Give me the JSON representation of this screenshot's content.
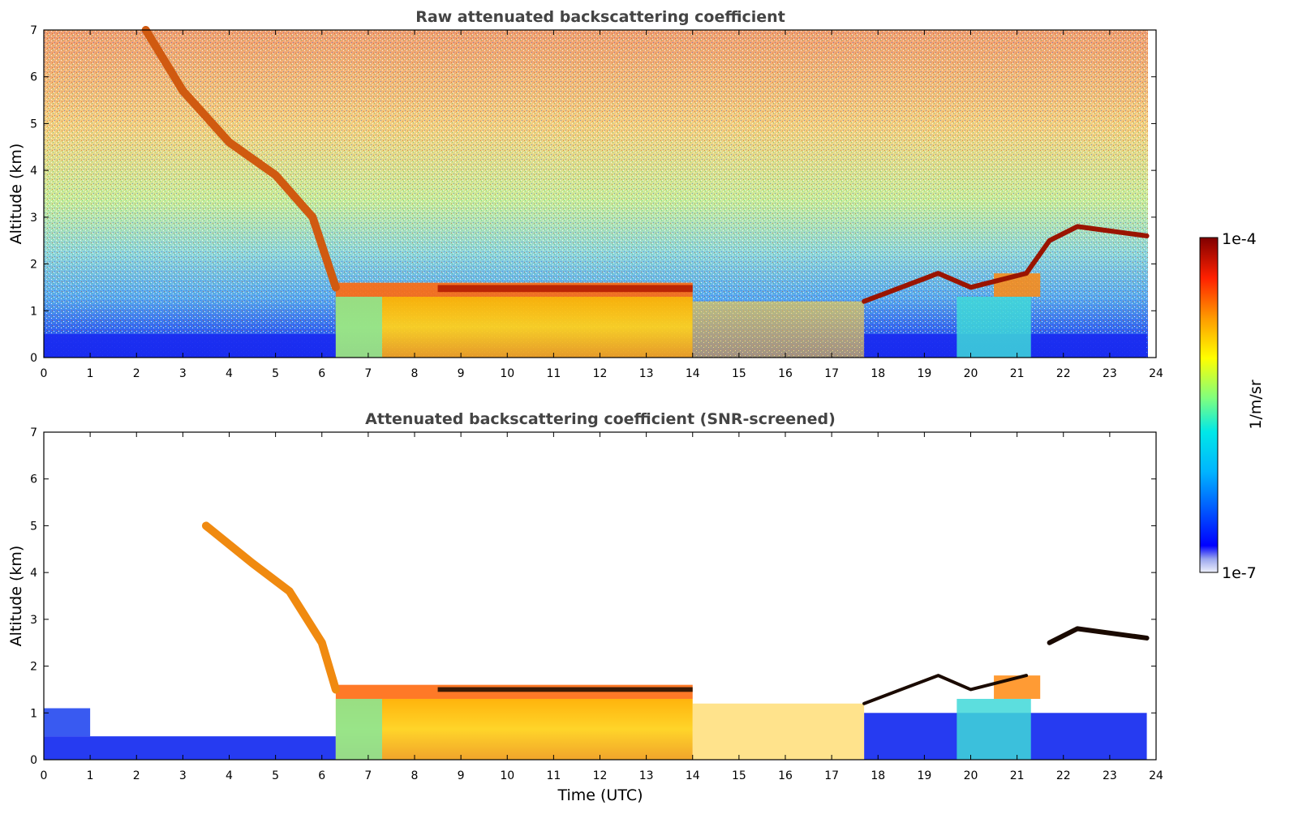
{
  "chart_data": [
    {
      "type": "heatmap",
      "title": "Raw attenuated backscattering coefficient",
      "xlabel": "",
      "ylabel": "Altitude (km)",
      "xlim": [
        0,
        24
      ],
      "ylim": [
        0,
        7
      ],
      "x_ticks": [
        "0",
        "1",
        "2",
        "3",
        "4",
        "5",
        "6",
        "7",
        "8",
        "9",
        "10",
        "11",
        "12",
        "13",
        "14",
        "15",
        "16",
        "17",
        "18",
        "19",
        "20",
        "21",
        "22",
        "23",
        "24"
      ],
      "y_ticks": [
        "0",
        "1",
        "2",
        "3",
        "4",
        "5",
        "6",
        "7"
      ],
      "features": {
        "low_altitude_blue_layer": {
          "x": [
            0,
            6.3
          ],
          "y": [
            0,
            0.5
          ]
        },
        "descending_virga": [
          [
            2.2,
            7.0
          ],
          [
            3.0,
            5.7
          ],
          [
            4.0,
            4.6
          ],
          [
            5.0,
            3.9
          ],
          [
            5.8,
            3.0
          ],
          [
            6.3,
            1.5
          ]
        ],
        "low_cloud": {
          "x": [
            6.3,
            14.0
          ],
          "base": 1.3,
          "top": 1.6
        },
        "broken_clouds": {
          "x": [
            14.0,
            17.7
          ]
        },
        "rising_cloud_layer": [
          [
            17.7,
            1.2
          ],
          [
            18.5,
            1.5
          ],
          [
            19.3,
            1.8
          ],
          [
            20.0,
            1.5
          ],
          [
            21.2,
            1.8
          ],
          [
            21.7,
            2.5
          ],
          [
            22.3,
            2.8
          ],
          [
            23.8,
            2.6
          ]
        ],
        "clear_gap": {
          "x": [
            19.7,
            21.3
          ],
          "y": [
            0,
            1.3
          ]
        }
      }
    },
    {
      "type": "heatmap",
      "title": "Attenuated backscattering coefficient (SNR-screened)",
      "xlabel": "Time (UTC)",
      "ylabel": "Altitude (km)",
      "xlim": [
        0,
        24
      ],
      "ylim": [
        0,
        7
      ],
      "x_ticks": [
        "0",
        "1",
        "2",
        "3",
        "4",
        "5",
        "6",
        "7",
        "8",
        "9",
        "10",
        "11",
        "12",
        "13",
        "14",
        "15",
        "16",
        "17",
        "18",
        "19",
        "20",
        "21",
        "22",
        "23",
        "24"
      ],
      "y_ticks": [
        "0",
        "1",
        "2",
        "3",
        "4",
        "5",
        "6",
        "7"
      ],
      "features": {
        "screened_virga": [
          [
            3.5,
            5.0
          ],
          [
            4.5,
            4.2
          ],
          [
            5.3,
            3.6
          ],
          [
            6.0,
            2.5
          ],
          [
            6.3,
            1.5
          ]
        ],
        "low_cloud": {
          "x": [
            6.3,
            14.0
          ],
          "base": 1.3,
          "top": 1.6
        },
        "elevated_layer": [
          [
            21.7,
            2.5
          ],
          [
            22.3,
            2.8
          ],
          [
            23.8,
            2.6
          ]
        ]
      }
    }
  ],
  "colorbar": {
    "label": "1/m/sr",
    "max_label": "1e-4",
    "min_label": "1e-7",
    "colormap": "jet"
  },
  "colors": {
    "title": "#444444",
    "axis": "#000000",
    "background": "#ffffff"
  }
}
